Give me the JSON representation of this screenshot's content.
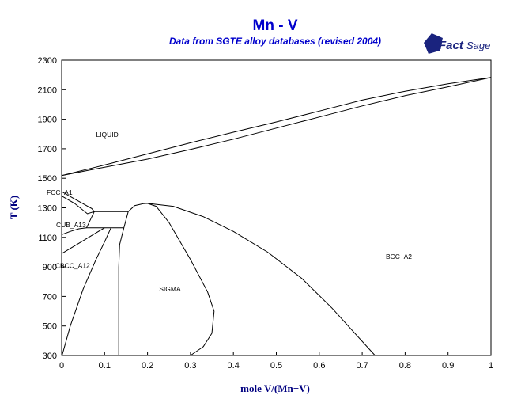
{
  "chart_data": {
    "type": "line",
    "title": "Mn - V",
    "subtitle": "Data from SGTE alloy databases (revised 2004)",
    "xlabel": "mole V/(Mn+V)",
    "ylabel": "T (K)",
    "xlim": [
      0,
      1
    ],
    "ylim": [
      300,
      2300
    ],
    "xticks": [
      "0",
      "0.1",
      "0.2",
      "0.3",
      "0.4",
      "0.5",
      "0.6",
      "0.7",
      "0.8",
      "0.9",
      "1"
    ],
    "yticks": [
      "300",
      "500",
      "700",
      "900",
      "1100",
      "1300",
      "1500",
      "1700",
      "1900",
      "2100",
      "2300"
    ],
    "grid": false,
    "logo": {
      "fact": "Fact",
      "sage": "Sage"
    },
    "phase_labels": [
      {
        "text": "LIQUID",
        "x": 0.08,
        "y": 1780
      },
      {
        "text": "FCC_A1",
        "x": -0.035,
        "y": 1388
      },
      {
        "text": "CUB_A13",
        "x": -0.013,
        "y": 1168
      },
      {
        "text": "CBCC_A12",
        "x": -0.015,
        "y": 893
      },
      {
        "text": "SIGMA",
        "x": 0.227,
        "y": 735
      },
      {
        "text": "BCC_A2",
        "x": 0.755,
        "y": 955
      }
    ],
    "series": [
      {
        "points": [
          [
            0,
            1519
          ],
          [
            0.1,
            1590
          ],
          [
            0.2,
            1665
          ],
          [
            0.3,
            1740
          ],
          [
            0.4,
            1812
          ],
          [
            0.5,
            1882
          ],
          [
            0.6,
            1955
          ],
          [
            0.7,
            2030
          ],
          [
            0.8,
            2090
          ],
          [
            0.9,
            2140
          ],
          [
            1,
            2183
          ]
        ]
      },
      {
        "points": [
          [
            0,
            1519
          ],
          [
            0.1,
            1575
          ],
          [
            0.2,
            1630
          ],
          [
            0.3,
            1695
          ],
          [
            0.4,
            1765
          ],
          [
            0.5,
            1840
          ],
          [
            0.6,
            1915
          ],
          [
            0.7,
            1990
          ],
          [
            0.8,
            2060
          ],
          [
            0.9,
            2120
          ],
          [
            1,
            2183
          ]
        ]
      },
      {
        "points": [
          [
            0,
            1410
          ],
          [
            0.03,
            1360
          ],
          [
            0.07,
            1295
          ],
          [
            0.076,
            1275
          ]
        ]
      },
      {
        "points": [
          [
            0,
            1380
          ],
          [
            0.03,
            1330
          ],
          [
            0.06,
            1260
          ],
          [
            0.076,
            1275
          ]
        ]
      },
      {
        "points": [
          [
            0.076,
            1275
          ],
          [
            0.155,
            1275
          ]
        ]
      },
      {
        "points": [
          [
            0.058,
            1165
          ],
          [
            0.145,
            1165
          ]
        ]
      },
      {
        "points": [
          [
            0.076,
            1275
          ],
          [
            0.058,
            1165
          ]
        ]
      },
      {
        "points": [
          [
            0.155,
            1275
          ],
          [
            0.145,
            1165
          ]
        ]
      },
      {
        "points": [
          [
            0,
            1118
          ],
          [
            0.02,
            1140
          ],
          [
            0.04,
            1158
          ],
          [
            0.058,
            1165
          ]
        ]
      },
      {
        "points": [
          [
            0,
            990
          ],
          [
            0.04,
            1060
          ],
          [
            0.08,
            1130
          ],
          [
            0.1,
            1165
          ]
        ]
      },
      {
        "points": [
          [
            0.001,
            300
          ],
          [
            0.02,
            500
          ],
          [
            0.05,
            750
          ],
          [
            0.08,
            950
          ],
          [
            0.1,
            1070
          ],
          [
            0.115,
            1165
          ]
        ]
      },
      {
        "points": [
          [
            0.133,
            300
          ],
          [
            0.133,
            900
          ],
          [
            0.135,
            1050
          ],
          [
            0.145,
            1165
          ]
        ]
      },
      {
        "points": [
          [
            0.155,
            1275
          ],
          [
            0.17,
            1315
          ],
          [
            0.19,
            1328
          ],
          [
            0.2,
            1330
          ],
          [
            0.22,
            1310
          ],
          [
            0.25,
            1200
          ],
          [
            0.3,
            950
          ],
          [
            0.34,
            730
          ],
          [
            0.355,
            600
          ],
          [
            0.35,
            450
          ],
          [
            0.33,
            360
          ],
          [
            0.3,
            300
          ]
        ]
      },
      {
        "points": [
          [
            0.2,
            1330
          ],
          [
            0.26,
            1310
          ],
          [
            0.33,
            1240
          ],
          [
            0.4,
            1140
          ],
          [
            0.48,
            1000
          ],
          [
            0.56,
            820
          ],
          [
            0.63,
            620
          ],
          [
            0.68,
            460
          ],
          [
            0.73,
            300
          ]
        ]
      }
    ]
  }
}
